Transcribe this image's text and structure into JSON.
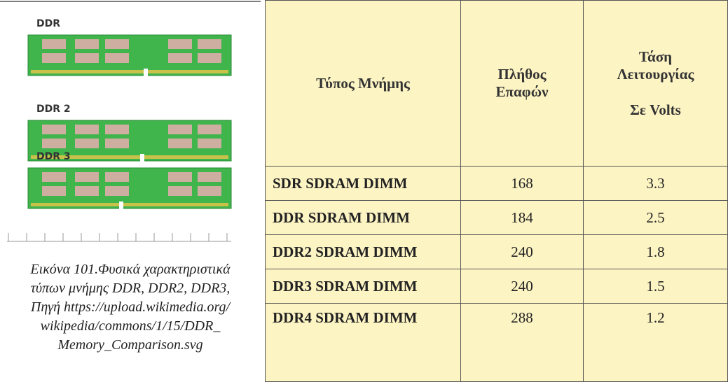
{
  "figure": {
    "labels": [
      "DDR",
      "DDR 2",
      "DDR 3"
    ],
    "caption": [
      "Εικόνα 101.Φυσικά χαρακτηριστικά",
      "τύπων μνήμης DDR, DDR2, DDR3,",
      "Πηγή  https://upload.wikimedia.org/",
      "wikipedia/commons/1/15/DDR_",
      "Memory_Comparison.svg"
    ]
  },
  "table": {
    "header": [
      [
        "Τύπος Μνήμης"
      ],
      [
        "Πλήθος",
        "Επαφών"
      ],
      [
        "Τάση",
        "Λειτουργίας",
        "Σε Volts"
      ]
    ],
    "rows": [
      [
        "SDR SDRAM DIMM",
        168,
        3.3
      ],
      [
        "DDR SDRAM DIMM",
        184,
        2.5
      ],
      [
        "DDR2 SDRAM DIMM",
        240,
        1.8
      ],
      [
        "DDR3 SDRAM DIMM",
        240,
        1.5
      ],
      [
        "DDR4 SDRAM DIMM",
        288,
        1.2
      ]
    ]
  }
}
